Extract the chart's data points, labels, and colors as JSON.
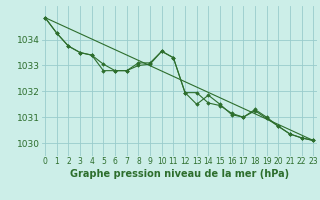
{
  "background_color": "#cceee8",
  "grid_color": "#99cccc",
  "line_color": "#2d6e2d",
  "xlabel": "Graphe pression niveau de la mer (hPa)",
  "xlabel_fontsize": 7,
  "yticks": [
    1030,
    1031,
    1032,
    1033,
    1034
  ],
  "xtick_labels": [
    "0",
    "1",
    "2",
    "3",
    "4",
    "5",
    "6",
    "7",
    "8",
    "9",
    "10",
    "11",
    "12",
    "13",
    "14",
    "15",
    "16",
    "17",
    "18",
    "19",
    "20",
    "21",
    "22",
    "23"
  ],
  "xticks": [
    0,
    1,
    2,
    3,
    4,
    5,
    6,
    7,
    8,
    9,
    10,
    11,
    12,
    13,
    14,
    15,
    16,
    17,
    18,
    19,
    20,
    21,
    22,
    23
  ],
  "ylim": [
    1029.5,
    1035.3
  ],
  "xlim": [
    -0.3,
    23.3
  ],
  "series1": [
    1034.85,
    1034.25,
    1033.75,
    1033.5,
    1033.4,
    1033.05,
    1032.8,
    1032.8,
    1033.0,
    1033.05,
    1033.55,
    1033.3,
    1031.95,
    1031.95,
    1031.55,
    1031.45,
    1031.15,
    1031.0,
    1031.25,
    1030.95,
    1030.65,
    1030.35,
    1030.2,
    1030.1
  ],
  "series2": [
    1034.85,
    1034.25,
    1033.75,
    1033.5,
    1033.4,
    1032.8,
    1032.8,
    1032.8,
    1033.1,
    1033.1,
    1033.55,
    1033.3,
    1031.95,
    1031.5,
    1031.85,
    1031.5,
    1031.1,
    1031.0,
    1031.3,
    1031.0,
    1030.65,
    1030.35,
    1030.2,
    1030.1
  ],
  "series3_x": [
    0,
    23
  ],
  "series3_y": [
    1034.85,
    1030.1
  ],
  "tick_fontsize": 5.5,
  "ytick_fontsize": 6.5
}
